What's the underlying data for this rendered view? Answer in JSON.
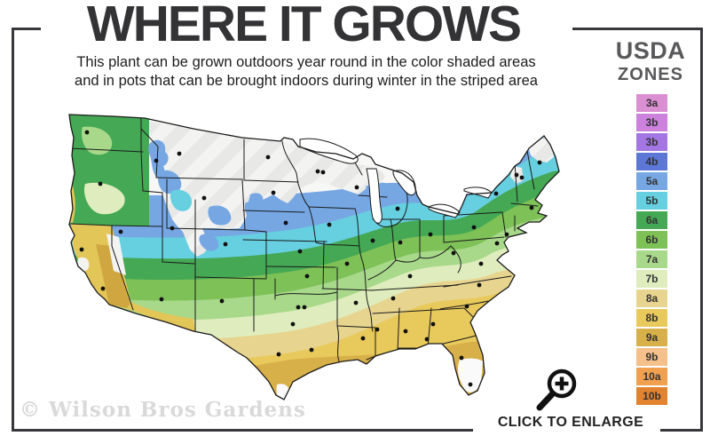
{
  "header": {
    "title": "WHERE IT GROWS",
    "subtitle_line1": "This plant can be grown outdoors year round in the color shaded areas",
    "subtitle_line2": "and in pots that can be brought indoors during winter in the striped area"
  },
  "legend": {
    "title_line1": "USDA",
    "title_line2": "ZONES",
    "zones": [
      {
        "label": "3a",
        "color": "#d98fd2"
      },
      {
        "label": "3b",
        "color": "#cc82dd"
      },
      {
        "label": "3b",
        "color": "#a376e3"
      },
      {
        "label": "4b",
        "color": "#5c77d6"
      },
      {
        "label": "5a",
        "color": "#76a7e3"
      },
      {
        "label": "5b",
        "color": "#66cfe0"
      },
      {
        "label": "6a",
        "color": "#44a854"
      },
      {
        "label": "6b",
        "color": "#7dc157"
      },
      {
        "label": "7a",
        "color": "#a8d98a"
      },
      {
        "label": "7b",
        "color": "#dfedbe"
      },
      {
        "label": "8a",
        "color": "#e7d48e"
      },
      {
        "label": "8b",
        "color": "#e8c95b"
      },
      {
        "label": "9a",
        "color": "#d8b04a"
      },
      {
        "label": "9b",
        "color": "#f5c08a"
      },
      {
        "label": "10a",
        "color": "#f0a04f"
      },
      {
        "label": "10b",
        "color": "#e2832f"
      }
    ]
  },
  "map": {
    "watermark": "© Wilson Bros Gardens",
    "region": "Contiguous United States"
  },
  "footer": {
    "enlarge_label": "CLICK TO ENLARGE"
  },
  "icons": {
    "enlarge": "magnifying-glass-plus-icon"
  },
  "frame_color": "#38383c"
}
